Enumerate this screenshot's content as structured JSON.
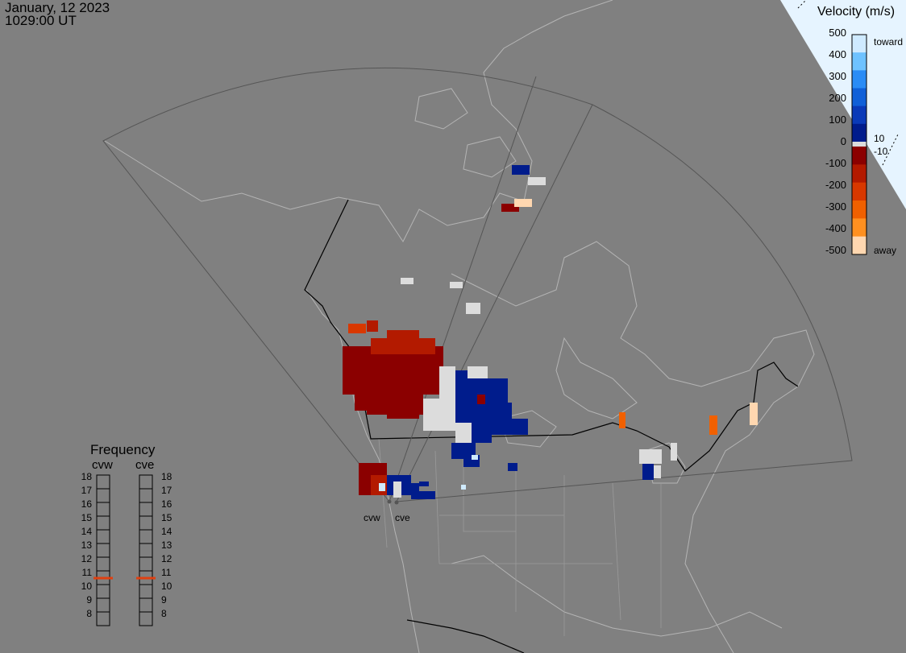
{
  "header": {
    "date": "January, 12 2023",
    "time": "1029:00 UT"
  },
  "velocity_scale": {
    "title": "Velocity (m/s)",
    "ticks": [
      "500",
      "400",
      "300",
      "200",
      "100",
      "0",
      "-100",
      "-200",
      "-300",
      "-400",
      "-500"
    ],
    "toward_label": "toward",
    "away_label": "away",
    "inner_pos": "10",
    "inner_neg": "-10",
    "colors": [
      "#cfeaff",
      "#6ec2ff",
      "#2a8cf5",
      "#1060d8",
      "#0a3ab8",
      "#001c8c",
      "#dcdcdc",
      "#8b0000",
      "#b31a00",
      "#d83800",
      "#f06000",
      "#ff9020",
      "#ffd7b0"
    ]
  },
  "frequency_panel": {
    "title": "Frequency",
    "radars": [
      "cvw",
      "cve"
    ],
    "frequencies_mhz": [
      "18",
      "17",
      "16",
      "15",
      "14",
      "13",
      "12",
      "11",
      "10",
      "9",
      "8"
    ],
    "active_mhz": 11.0,
    "marker_color": "#e04010"
  },
  "sites": {
    "west_label": "cvw",
    "east_label": "cve"
  },
  "map_style": {
    "background": "#808080",
    "coast_color": "#b4b4b4",
    "border_color": "#000000",
    "fov_color": "#505050"
  }
}
